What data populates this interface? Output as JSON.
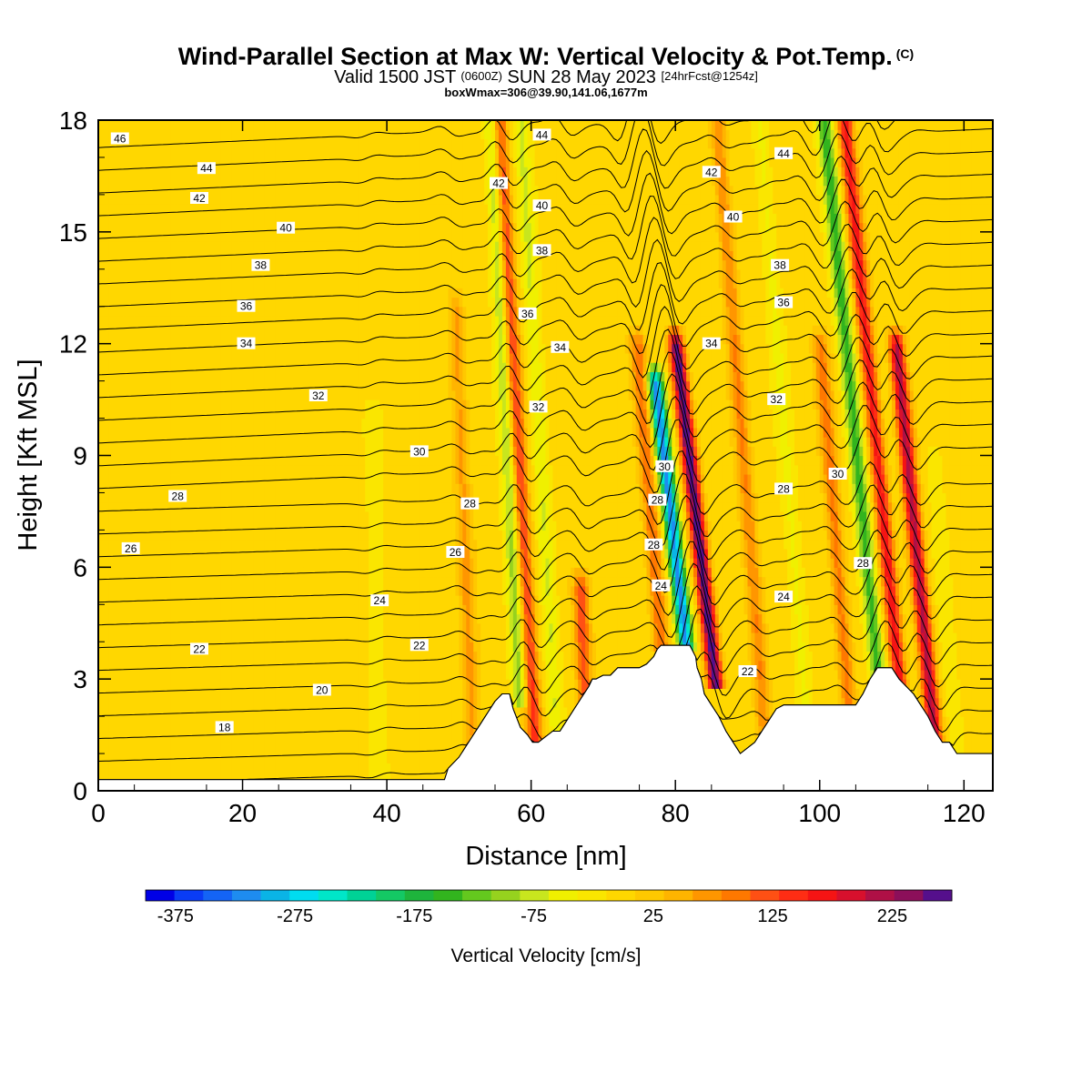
{
  "title": {
    "main": "Wind-Parallel Section at Max W: Vertical Velocity & Pot.Temp.",
    "copyright": "(C)",
    "valid_prefix": "Valid 1500 JST",
    "valid_utc": "(0600Z)",
    "valid_date": "SUN 28 May 2023",
    "forecast": "[24hrFcst@1254z]",
    "box_info": "boxWmax=306@39.90,141.06,1677m"
  },
  "chart_data": {
    "type": "heatmap",
    "xlabel": "Distance [nm]",
    "ylabel": "Height [Kft MSL]",
    "xlim": [
      0,
      124
    ],
    "ylim": [
      0,
      18
    ],
    "x_ticks": [
      0,
      20,
      40,
      60,
      80,
      100,
      120
    ],
    "y_ticks": [
      0,
      3,
      6,
      9,
      12,
      15,
      18
    ],
    "colorbar": {
      "title": "Vertical Velocity [cm/s]",
      "tick_labels": [
        "-375",
        "-275",
        "-175",
        "-75",
        "25",
        "125",
        "225"
      ],
      "min": -400,
      "max": 275,
      "step": 25,
      "colors": [
        "#0000e6",
        "#0a3cf5",
        "#1464f5",
        "#1e8cf0",
        "#0ab4e6",
        "#00dcf0",
        "#00e6c8",
        "#00d296",
        "#14c864",
        "#1eb43c",
        "#32b41e",
        "#64c81e",
        "#96d21e",
        "#c8e61e",
        "#f0f000",
        "#fae600",
        "#ffd700",
        "#ffc800",
        "#ffb400",
        "#ff9600",
        "#ff7800",
        "#ff5014",
        "#ff2d14",
        "#f51414",
        "#d7102d",
        "#af1046",
        "#8c0f5a",
        "#550f8c"
      ]
    },
    "terrain": {
      "x": [
        0,
        48,
        48.5,
        50,
        51,
        52,
        53,
        54,
        55,
        56,
        57,
        57.5,
        58.5,
        59.5,
        60.2,
        61,
        63,
        64,
        65,
        66,
        67,
        68,
        68.5,
        69,
        70,
        71,
        72,
        73,
        74,
        75,
        76,
        77,
        77.5,
        78,
        79,
        80,
        81,
        82,
        82.8,
        83,
        83.6,
        84,
        85,
        86,
        87,
        88,
        89,
        91,
        92,
        93,
        94,
        95,
        96,
        97,
        98,
        99,
        100,
        101,
        102,
        103,
        104,
        105,
        106,
        107,
        108,
        109,
        110,
        111,
        112,
        113,
        114,
        115,
        116,
        117,
        118,
        119,
        120,
        121,
        122,
        123,
        124
      ],
      "h": [
        0.3,
        0.3,
        0.6,
        0.9,
        1.2,
        1.5,
        1.8,
        2.1,
        2.4,
        2.6,
        2.6,
        2.2,
        1.7,
        1.5,
        1.3,
        1.3,
        1.6,
        1.6,
        1.9,
        2.2,
        2.5,
        2.8,
        3.0,
        3.0,
        3.1,
        3.1,
        3.3,
        3.3,
        3.3,
        3.3,
        3.4,
        3.6,
        3.8,
        3.9,
        3.9,
        3.9,
        3.9,
        3.9,
        3.6,
        3.3,
        3.0,
        2.6,
        2.3,
        2.0,
        1.6,
        1.3,
        1.0,
        1.3,
        1.6,
        1.9,
        2.2,
        2.3,
        2.3,
        2.3,
        2.3,
        2.3,
        2.3,
        2.3,
        2.3,
        2.3,
        2.3,
        2.3,
        2.6,
        3.0,
        3.3,
        3.3,
        3.3,
        3.0,
        2.8,
        2.6,
        2.3,
        2.0,
        1.6,
        1.3,
        1.3,
        1.0,
        1.0,
        1.0,
        1.0,
        1.0,
        1.0
      ]
    },
    "w_features": [
      {
        "x": 58.5,
        "y_bottom": 2.4,
        "y_top": 18,
        "w": -100,
        "tilt": 0.25
      },
      {
        "x": 60.5,
        "y_bottom": 1.5,
        "y_top": 18,
        "w": 150,
        "tilt": 0.3
      },
      {
        "x": 63.5,
        "y_bottom": 1.7,
        "y_top": 18,
        "w": -60,
        "tilt": 0.3
      },
      {
        "x": 67.5,
        "y_bottom": 2.4,
        "y_top": 5.5,
        "w": 130,
        "tilt": 0.2
      },
      {
        "x": 78,
        "y_bottom": 3.9,
        "y_top": 12,
        "w": 110,
        "tilt": 0.4
      },
      {
        "x": 81.5,
        "y_bottom": 3.9,
        "y_top": 11,
        "w": -330,
        "tilt": 0.6
      },
      {
        "x": 85.5,
        "y_bottom": 3.0,
        "y_top": 12,
        "w": 290,
        "tilt": 0.6
      },
      {
        "x": 92.5,
        "y_bottom": 1.3,
        "y_top": 18,
        "w": 90,
        "tilt": 0.4
      },
      {
        "x": 98,
        "y_bottom": 2.3,
        "y_top": 18,
        "w": -40,
        "tilt": 0.4
      },
      {
        "x": 104,
        "y_bottom": 2.3,
        "y_top": 12,
        "w": 100,
        "tilt": 0.4
      },
      {
        "x": 108,
        "y_bottom": 3.3,
        "y_top": 18,
        "w": -150,
        "tilt": 0.5
      },
      {
        "x": 111,
        "y_bottom": 3.0,
        "y_top": 18,
        "w": 180,
        "tilt": 0.5
      },
      {
        "x": 116,
        "y_bottom": 1.3,
        "y_top": 12,
        "w": 230,
        "tilt": 0.5
      },
      {
        "x": 119,
        "y_bottom": 1.0,
        "y_top": 9,
        "w": -30,
        "tilt": 0.4
      },
      {
        "x": 52,
        "y_bottom": 0.8,
        "y_top": 13,
        "w": 70,
        "tilt": 0.2
      },
      {
        "x": 39,
        "y_bottom": 0.3,
        "y_top": 10,
        "w": -30,
        "tilt": 0.1
      }
    ],
    "theta_contours": {
      "levels": [
        17,
        18,
        19,
        20,
        21,
        22,
        23,
        24,
        25,
        26,
        27,
        28,
        29,
        30,
        31,
        32,
        33,
        34,
        35,
        36,
        37,
        38,
        39,
        40,
        41,
        42,
        43,
        44,
        45,
        46
      ],
      "labels": [
        {
          "text": "46",
          "x": 3,
          "y": 17.5
        },
        {
          "text": "44",
          "x": 15,
          "y": 16.7
        },
        {
          "text": "42",
          "x": 14,
          "y": 15.9
        },
        {
          "text": "40",
          "x": 26,
          "y": 15.1
        },
        {
          "text": "38",
          "x": 22.5,
          "y": 14.1
        },
        {
          "text": "36",
          "x": 20.5,
          "y": 13.0
        },
        {
          "text": "34",
          "x": 20.5,
          "y": 12.0
        },
        {
          "text": "32",
          "x": 30.5,
          "y": 10.6
        },
        {
          "text": "30",
          "x": 44.5,
          "y": 9.1
        },
        {
          "text": "28",
          "x": 11,
          "y": 7.9
        },
        {
          "text": "28",
          "x": 51.5,
          "y": 7.7
        },
        {
          "text": "26",
          "x": 4.5,
          "y": 6.5
        },
        {
          "text": "26",
          "x": 49.5,
          "y": 6.4
        },
        {
          "text": "24",
          "x": 39,
          "y": 5.1
        },
        {
          "text": "22",
          "x": 14,
          "y": 3.8
        },
        {
          "text": "22",
          "x": 44.5,
          "y": 3.9
        },
        {
          "text": "20",
          "x": 31,
          "y": 2.7
        },
        {
          "text": "18",
          "x": 17.5,
          "y": 1.7
        },
        {
          "text": "44",
          "x": 61.5,
          "y": 17.6
        },
        {
          "text": "42",
          "x": 55.5,
          "y": 16.3
        },
        {
          "text": "40",
          "x": 61.5,
          "y": 15.7
        },
        {
          "text": "38",
          "x": 61.5,
          "y": 14.5
        },
        {
          "text": "36",
          "x": 59.5,
          "y": 12.8
        },
        {
          "text": "34",
          "x": 64,
          "y": 11.9
        },
        {
          "text": "32",
          "x": 61,
          "y": 10.3
        },
        {
          "text": "44",
          "x": 95,
          "y": 17.1
        },
        {
          "text": "42",
          "x": 85,
          "y": 16.6
        },
        {
          "text": "40",
          "x": 88,
          "y": 15.4
        },
        {
          "text": "38",
          "x": 94.5,
          "y": 14.1
        },
        {
          "text": "36",
          "x": 95,
          "y": 13.1
        },
        {
          "text": "34",
          "x": 85,
          "y": 12.0
        },
        {
          "text": "32",
          "x": 94,
          "y": 10.5
        },
        {
          "text": "30",
          "x": 78.5,
          "y": 8.7
        },
        {
          "text": "30",
          "x": 102.5,
          "y": 8.5
        },
        {
          "text": "28",
          "x": 77.5,
          "y": 7.8
        },
        {
          "text": "28",
          "x": 95,
          "y": 8.1
        },
        {
          "text": "28",
          "x": 77,
          "y": 6.6
        },
        {
          "text": "28",
          "x": 106,
          "y": 6.1
        },
        {
          "text": "24",
          "x": 78,
          "y": 5.5
        },
        {
          "text": "24",
          "x": 95,
          "y": 5.2
        },
        {
          "text": "22",
          "x": 90,
          "y": 3.2
        }
      ]
    }
  }
}
